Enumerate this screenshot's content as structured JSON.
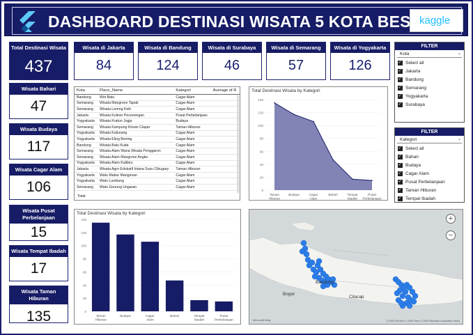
{
  "header": {
    "title": "DASHBOARD DESTINASI WISATA 5 KOTA BESAR",
    "logo_left_icon": "flutter-logo",
    "logo_right_text": "kaggle"
  },
  "left_kpis": [
    {
      "label": "Total Destinasi Wisata",
      "value": "437"
    },
    {
      "label": "Wisata Bahari",
      "value": "47"
    },
    {
      "label": "Wisata Budaya",
      "value": "117"
    },
    {
      "label": "Wisata Cagar Alam",
      "value": "106"
    },
    {
      "label": "Wisata Pusat Perbelanjaan",
      "value": "15"
    },
    {
      "label": "Wisata Tempat Ibadah",
      "value": "17"
    },
    {
      "label": "Wisata Taman Hiburan",
      "value": "135"
    }
  ],
  "top_kpis": [
    {
      "label": "Wisata di Jakarta",
      "value": "84"
    },
    {
      "label": "Wisata di Bandung",
      "value": "124"
    },
    {
      "label": "Wisata di Surabaya",
      "value": "46"
    },
    {
      "label": "Wisata di Semarang",
      "value": "57"
    },
    {
      "label": "Wisata di Yogyakarta",
      "value": "126"
    }
  ],
  "filter_kota": {
    "title": "FILTER",
    "dropdown": "Kota",
    "items": [
      "Select all",
      "Jakarta",
      "Bandung",
      "Semarang",
      "Yogyakarta",
      "Surabaya"
    ]
  },
  "filter_kategori": {
    "title": "FILTER",
    "dropdown": "Kategori",
    "items": [
      "Select all",
      "Bahari",
      "Budaya",
      "Cagar Alam",
      "Pusat Perbelanjaan",
      "Taman Hiburan",
      "Tempat Ibadah"
    ]
  },
  "table": {
    "columns": [
      "Kota",
      "Place_Name",
      "Kategori",
      "Average of R"
    ],
    "rows": [
      [
        "Bandung",
        "Wot Batu",
        "Cagar Alam"
      ],
      [
        "Semarang",
        "Wisata Mangrove Tapak",
        "Cagar Alam"
      ],
      [
        "Semarang",
        "Wisata Lereng Kelir",
        "Cagar Alam"
      ],
      [
        "Jakarta",
        "Wisata Kuliner Pecenongan",
        "Pusat Perbelanjaan"
      ],
      [
        "Yogyakarta",
        "Wisata Kraton Jogja",
        "Budaya"
      ],
      [
        "Semarang",
        "Wisata Kampung Krisan Clapar",
        "Taman Hiburan"
      ],
      [
        "Yogyakarta",
        "Wisata Kaliurang",
        "Cagar Alam"
      ],
      [
        "Yogyakarta",
        "Wisata Eling Bening",
        "Cagar Alam"
      ],
      [
        "Bandung",
        "Wisata Batu Kuda",
        "Cagar Alam"
      ],
      [
        "Semarang",
        "Wisata Alam Wana Wisata Penggaron",
        "Cagar Alam"
      ],
      [
        "Semarang",
        "Wisata Alam Mangrove Angke",
        "Cagar Alam"
      ],
      [
        "Yogyakarta",
        "Wisata Alam Kalibiru",
        "Cagar Alam"
      ],
      [
        "Jakarta",
        "Wisata Agro Edukatif Istana Susu Cibugary",
        "Taman Hiburan"
      ],
      [
        "Yogyakarta",
        "Watu Mabur Mangunan",
        "Cagar Alam"
      ],
      [
        "Yogyakarta",
        "Watu Lumbung",
        "Cagar Alam"
      ],
      [
        "Semarang",
        "Watu Gunung Ungaran",
        "Cagar Alam"
      ]
    ],
    "total_label": "Total"
  },
  "line_chart_title": "Total Destinasi Wisata by Kategori",
  "bar_chart_title": "Total Destinasi Wisata by Kategori",
  "chart_data": [
    {
      "type": "area",
      "title": "Total Destinasi Wisata by Kategori",
      "categories": [
        "Taman Hiburan",
        "Budaya",
        "Cagar Alam",
        "Bahari",
        "Tempat Ibadah",
        "Pusat Perbelanjaan"
      ],
      "values": [
        135,
        117,
        106,
        47,
        17,
        15
      ],
      "ylim": [
        0,
        140
      ],
      "yticks": [
        0,
        20,
        40,
        60,
        80,
        100,
        120,
        140
      ],
      "color": "#6b6fa8"
    },
    {
      "type": "bar",
      "title": "Total Destinasi Wisata by Kategori",
      "categories": [
        "Taman Hiburan",
        "Budaya",
        "Cagar Alam",
        "Bahari",
        "Tempat Ibadah",
        "Pusat Perbelanjaan"
      ],
      "values": [
        135,
        117,
        106,
        47,
        17,
        15
      ],
      "ylim": [
        0,
        140
      ],
      "yticks": [
        0,
        20,
        40,
        60,
        80,
        100,
        120,
        140
      ],
      "color": "#171c66"
    }
  ],
  "map": {
    "labels": [
      "Bogor",
      "Bandung",
      "Cilacap"
    ],
    "zoom_in": "+",
    "zoom_out": "−",
    "attribution": "© 2020 TomTom, © 2020 Here, © 2020 Microsoft Corporation Terms",
    "provider": "Microsoft Bing",
    "point_color": "#2b7de9"
  }
}
